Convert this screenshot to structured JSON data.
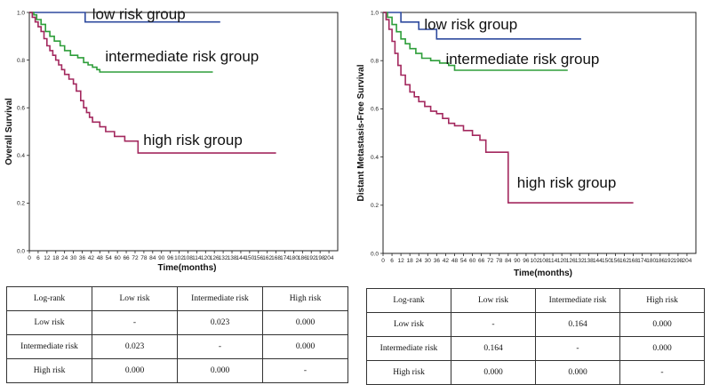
{
  "chart_data": [
    {
      "type": "line",
      "subtype": "kaplan-meier",
      "ylabel": "Overall Survival",
      "xlabel": "Time(months)",
      "xlim": [
        0,
        210
      ],
      "ylim": [
        0,
        1.0
      ],
      "xticks": [
        0,
        6,
        12,
        18,
        24,
        30,
        36,
        42,
        48,
        54,
        60,
        66,
        72,
        78,
        84,
        90,
        96,
        102,
        108,
        114,
        120,
        126,
        132,
        138,
        144,
        150,
        156,
        162,
        168,
        174,
        180,
        186,
        192,
        198,
        204
      ],
      "yticks": [
        0.0,
        0.2,
        0.4,
        0.6,
        0.8,
        1.0
      ],
      "ytick_labels": [
        "0.0",
        "0.2",
        "0.4",
        "0.6",
        "0.8",
        "1.0"
      ],
      "series": [
        {
          "name": "low risk group",
          "color": "#2E4A9E",
          "points": [
            [
              0,
              1.0
            ],
            [
              38,
              1.0
            ],
            [
              38,
              0.96
            ],
            [
              130,
              0.96
            ]
          ]
        },
        {
          "name": "intermediate risk group",
          "color": "#2E9E3A",
          "points": [
            [
              0,
              1.0
            ],
            [
              3,
              0.99
            ],
            [
              5,
              0.97
            ],
            [
              8,
              0.95
            ],
            [
              11,
              0.92
            ],
            [
              14,
              0.9
            ],
            [
              17,
              0.88
            ],
            [
              21,
              0.86
            ],
            [
              24,
              0.84
            ],
            [
              28,
              0.82
            ],
            [
              33,
              0.81
            ],
            [
              37,
              0.79
            ],
            [
              40,
              0.78
            ],
            [
              43,
              0.77
            ],
            [
              46,
              0.76
            ],
            [
              48,
              0.75
            ],
            [
              125,
              0.75
            ]
          ]
        },
        {
          "name": "high risk group",
          "color": "#A3285E",
          "points": [
            [
              0,
              1.0
            ],
            [
              2,
              0.98
            ],
            [
              4,
              0.96
            ],
            [
              6,
              0.94
            ],
            [
              8,
              0.92
            ],
            [
              10,
              0.89
            ],
            [
              12,
              0.86
            ],
            [
              14,
              0.84
            ],
            [
              16,
              0.82
            ],
            [
              18,
              0.8
            ],
            [
              20,
              0.78
            ],
            [
              22,
              0.76
            ],
            [
              24,
              0.74
            ],
            [
              27,
              0.72
            ],
            [
              30,
              0.7
            ],
            [
              32,
              0.67
            ],
            [
              35,
              0.63
            ],
            [
              37,
              0.6
            ],
            [
              39,
              0.58
            ],
            [
              41,
              0.56
            ],
            [
              43,
              0.54
            ],
            [
              48,
              0.52
            ],
            [
              52,
              0.5
            ],
            [
              58,
              0.48
            ],
            [
              65,
              0.46
            ],
            [
              74,
              0.46
            ],
            [
              74,
              0.41
            ],
            [
              168,
              0.41
            ]
          ]
        }
      ]
    },
    {
      "type": "line",
      "subtype": "kaplan-meier",
      "ylabel": "Distant Metastasis-Free Survival",
      "xlabel": "Time(months)",
      "xlim": [
        0,
        210
      ],
      "ylim": [
        0,
        1.0
      ],
      "xticks": [
        0,
        6,
        12,
        18,
        24,
        30,
        36,
        42,
        48,
        54,
        60,
        66,
        72,
        78,
        84,
        90,
        96,
        102,
        108,
        114,
        120,
        126,
        132,
        138,
        144,
        150,
        156,
        162,
        168,
        174,
        180,
        186,
        192,
        198,
        204
      ],
      "yticks": [
        0.0,
        0.2,
        0.4,
        0.6,
        0.8,
        1.0
      ],
      "ytick_labels": [
        "0.0",
        "0.2",
        "0.4",
        "0.6",
        "0.8",
        "1.0"
      ],
      "series": [
        {
          "name": "low risk group",
          "color": "#2E4A9E",
          "points": [
            [
              0,
              1.0
            ],
            [
              12,
              1.0
            ],
            [
              12,
              0.96
            ],
            [
              24,
              0.96
            ],
            [
              24,
              0.93
            ],
            [
              36,
              0.93
            ],
            [
              36,
              0.89
            ],
            [
              133,
              0.89
            ]
          ]
        },
        {
          "name": "intermediate risk group",
          "color": "#2E9E3A",
          "points": [
            [
              0,
              1.0
            ],
            [
              3,
              0.98
            ],
            [
              6,
              0.95
            ],
            [
              9,
              0.92
            ],
            [
              12,
              0.89
            ],
            [
              15,
              0.87
            ],
            [
              18,
              0.85
            ],
            [
              22,
              0.83
            ],
            [
              26,
              0.81
            ],
            [
              32,
              0.8
            ],
            [
              38,
              0.79
            ],
            [
              44,
              0.78
            ],
            [
              48,
              0.76
            ],
            [
              124,
              0.76
            ]
          ]
        },
        {
          "name": "high risk group",
          "color": "#A3285E",
          "points": [
            [
              0,
              1.0
            ],
            [
              2,
              0.97
            ],
            [
              4,
              0.93
            ],
            [
              6,
              0.88
            ],
            [
              8,
              0.83
            ],
            [
              10,
              0.78
            ],
            [
              12,
              0.74
            ],
            [
              15,
              0.7
            ],
            [
              18,
              0.67
            ],
            [
              21,
              0.65
            ],
            [
              24,
              0.63
            ],
            [
              28,
              0.61
            ],
            [
              32,
              0.59
            ],
            [
              36,
              0.58
            ],
            [
              40,
              0.56
            ],
            [
              44,
              0.54
            ],
            [
              48,
              0.53
            ],
            [
              54,
              0.51
            ],
            [
              60,
              0.49
            ],
            [
              65,
              0.47
            ],
            [
              69,
              0.42
            ],
            [
              84,
              0.42
            ],
            [
              84,
              0.21
            ],
            [
              168,
              0.21
            ]
          ]
        }
      ]
    }
  ],
  "tables": [
    {
      "header": [
        "Log-rank",
        "Low risk",
        "Intermediate risk",
        "High risk"
      ],
      "rows": [
        [
          "Low risk",
          "-",
          "0.023",
          "0.000"
        ],
        [
          "Intermediate risk",
          "0.023",
          "-",
          "0.000"
        ],
        [
          "High risk",
          "0.000",
          "0.000",
          "-"
        ]
      ]
    },
    {
      "header": [
        "Log-rank",
        "Low risk",
        "Intermediate risk",
        "High risk"
      ],
      "rows": [
        [
          "Low risk",
          "-",
          "0.164",
          "0.000"
        ],
        [
          "Intermediate risk",
          "0.164",
          "-",
          "0.000"
        ],
        [
          "High risk",
          "0.000",
          "0.000",
          "-"
        ]
      ]
    }
  ]
}
